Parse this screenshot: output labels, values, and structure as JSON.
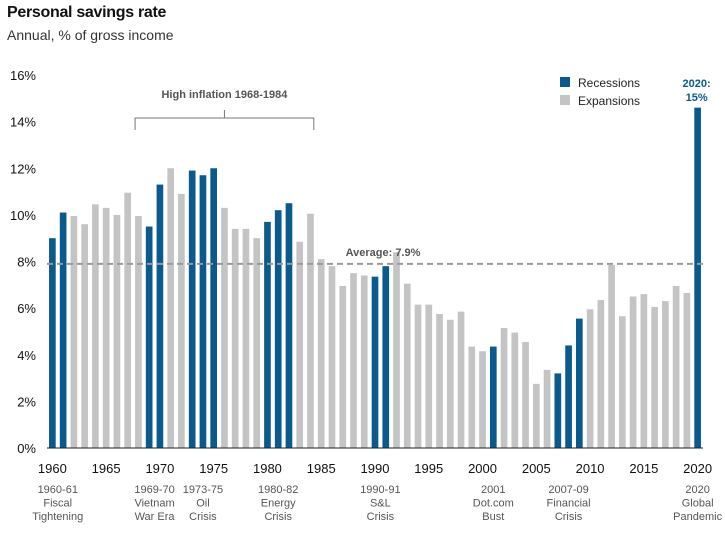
{
  "chart_data": {
    "type": "bar",
    "title": "Personal savings rate",
    "subtitle": "Annual, % of gross income",
    "ylim": [
      0,
      16
    ],
    "yticks": [
      "0%",
      "2%",
      "4%",
      "6%",
      "8%",
      "10%",
      "12%",
      "14%",
      "16%"
    ],
    "xticks": [
      1960,
      1965,
      1970,
      1975,
      1980,
      1985,
      1990,
      1995,
      2000,
      2005,
      2010,
      2015,
      2020
    ],
    "x_start": 1960,
    "x_end": 2020,
    "values": [
      9.0,
      10.1,
      9.95,
      9.6,
      10.45,
      10.3,
      10.0,
      10.95,
      9.95,
      9.5,
      11.3,
      12.0,
      10.9,
      11.9,
      11.7,
      12.0,
      10.3,
      9.4,
      9.4,
      9.0,
      9.7,
      10.2,
      10.5,
      8.85,
      10.05,
      8.1,
      7.8,
      6.95,
      7.5,
      7.4,
      7.35,
      7.8,
      8.4,
      7.05,
      6.15,
      6.15,
      5.75,
      5.5,
      5.85,
      4.35,
      4.15,
      4.35,
      5.15,
      4.95,
      4.55,
      2.75,
      3.35,
      3.2,
      4.4,
      5.55,
      5.95,
      6.35,
      7.85,
      5.65,
      6.5,
      6.6,
      6.05,
      6.3,
      6.95,
      6.65,
      14.6
    ],
    "recession_years": [
      1960,
      1961,
      1969,
      1970,
      1973,
      1974,
      1975,
      1980,
      1981,
      1982,
      1990,
      1991,
      2001,
      2007,
      2008,
      2009,
      2020
    ],
    "series": [
      {
        "name": "Recessions",
        "color": "#0b5a8e"
      },
      {
        "name": "Expansions",
        "color": "#c4c4c4"
      }
    ],
    "legend_position": "top-right",
    "average": {
      "value": 7.9,
      "label": "Average: 7.9%"
    },
    "bracket": {
      "label": "High inflation 1968-1984",
      "from": 1968,
      "to": 1984
    },
    "callout": {
      "line1": "2020:",
      "line2": "15%"
    },
    "events": [
      {
        "x": 1960.5,
        "lines": [
          "1960-61",
          "Fiscal",
          "Tightening"
        ]
      },
      {
        "x": 1969.5,
        "lines": [
          "1969-70",
          "Vietnam",
          "War Era"
        ]
      },
      {
        "x": 1974,
        "lines": [
          "1973-75",
          "Oil",
          "Crisis"
        ]
      },
      {
        "x": 1981,
        "lines": [
          "1980-82",
          "Energy",
          "Crisis"
        ]
      },
      {
        "x": 1990.5,
        "lines": [
          "1990-91",
          "S&L",
          "Crisis"
        ]
      },
      {
        "x": 2001,
        "lines": [
          "2001",
          "Dot.com",
          "Bust"
        ]
      },
      {
        "x": 2008,
        "lines": [
          "2007-09",
          "Financial",
          "Crisis"
        ]
      },
      {
        "x": 2020,
        "lines": [
          "2020",
          "Global",
          "Pandemic"
        ]
      }
    ]
  }
}
